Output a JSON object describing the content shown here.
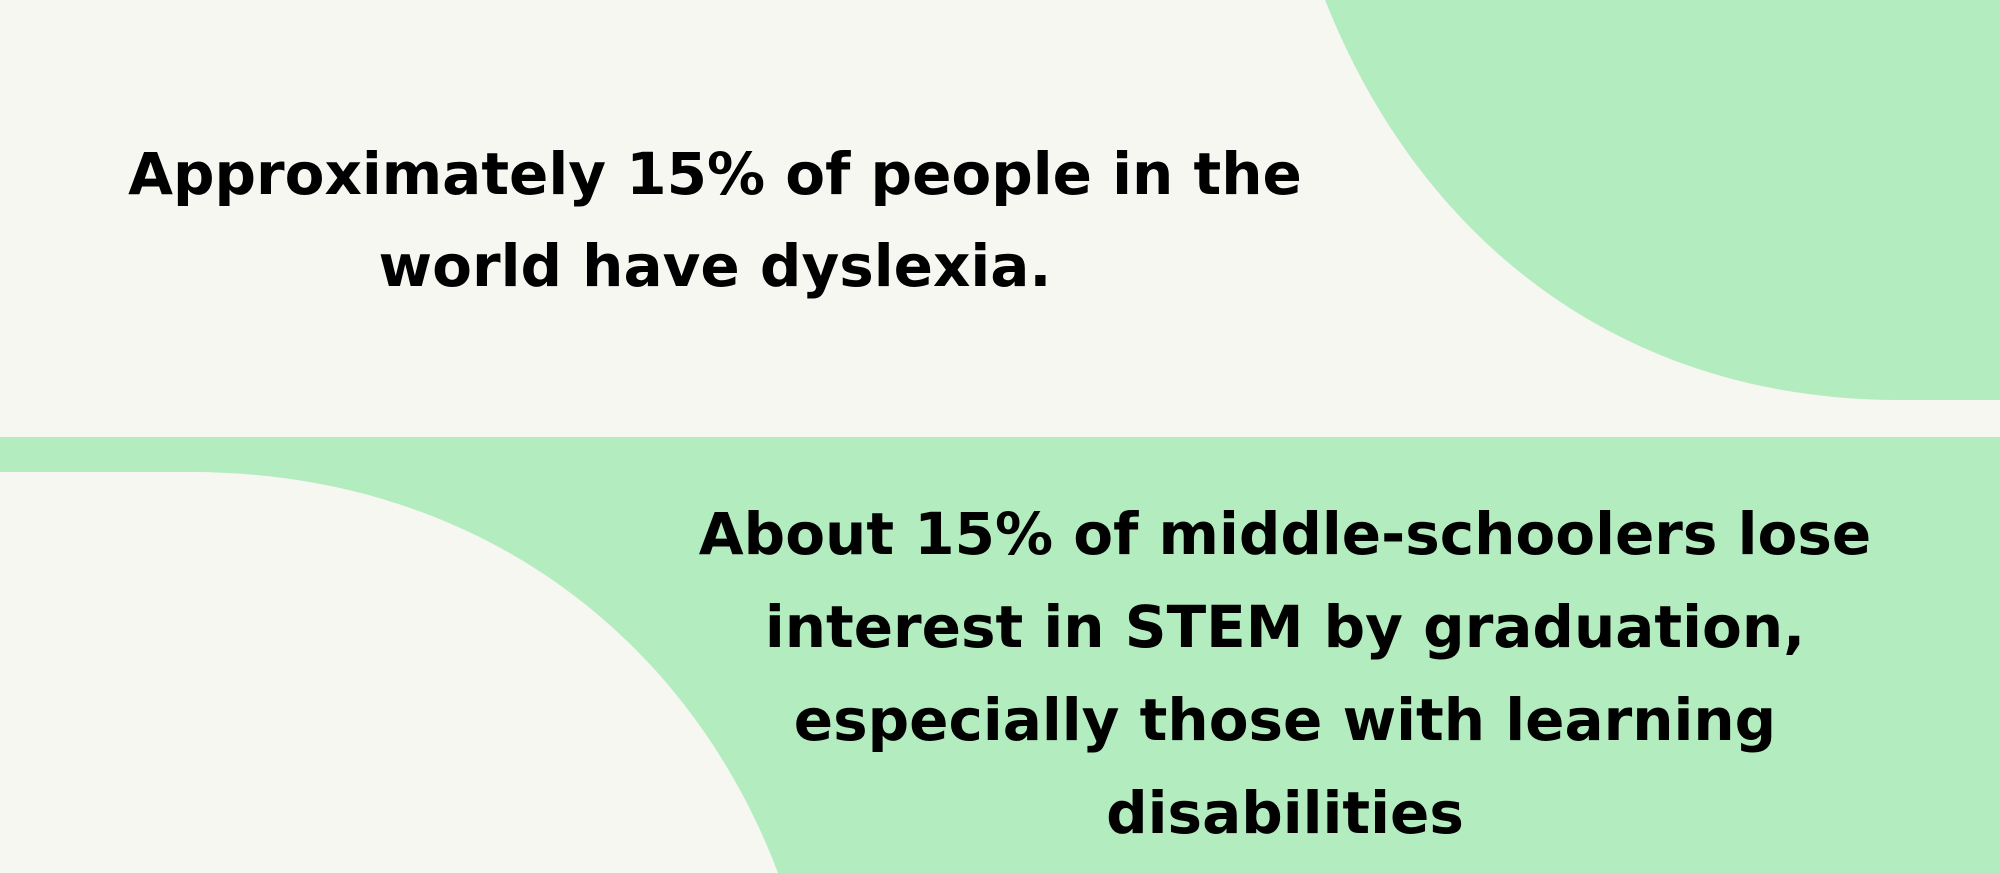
{
  "facts": {
    "first": "Approximately 15% of people in the world have dyslexia.",
    "second": "About 15% of middle-schoolers lose interest in STEM by graduation, especially those with learning disabilities"
  },
  "colors": {
    "background": "#f7f7f2",
    "accent_green": "#b3ecbf",
    "text": "#000000"
  }
}
